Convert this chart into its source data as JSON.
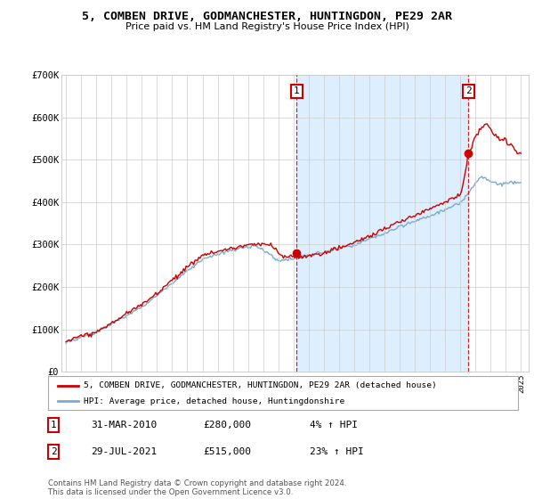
{
  "title": "5, COMBEN DRIVE, GODMANCHESTER, HUNTINGDON, PE29 2AR",
  "subtitle": "Price paid vs. HM Land Registry's House Price Index (HPI)",
  "red_label": "5, COMBEN DRIVE, GODMANCHESTER, HUNTINGDON, PE29 2AR (detached house)",
  "blue_label": "HPI: Average price, detached house, Huntingdonshire",
  "annotation1_date": "31-MAR-2010",
  "annotation1_price": "£280,000",
  "annotation1_hpi": "4% ↑ HPI",
  "annotation2_date": "29-JUL-2021",
  "annotation2_price": "£515,000",
  "annotation2_hpi": "23% ↑ HPI",
  "footer": "Contains HM Land Registry data © Crown copyright and database right 2024.\nThis data is licensed under the Open Government Licence v3.0.",
  "ylim": [
    0,
    700000
  ],
  "yticks": [
    0,
    100000,
    200000,
    300000,
    400000,
    500000,
    600000,
    700000
  ],
  "ytick_labels": [
    "£0",
    "£100K",
    "£200K",
    "£300K",
    "£400K",
    "£500K",
    "£600K",
    "£700K"
  ],
  "red_color": "#cc0000",
  "blue_color": "#7aabcc",
  "shade_color": "#ddeeff",
  "vline_color": "#cc0000",
  "background_color": "#ffffff",
  "grid_color": "#cccccc",
  "sale1_year": 2010.21,
  "sale1_price": 280000,
  "sale2_year": 2021.54,
  "sale2_price": 515000
}
